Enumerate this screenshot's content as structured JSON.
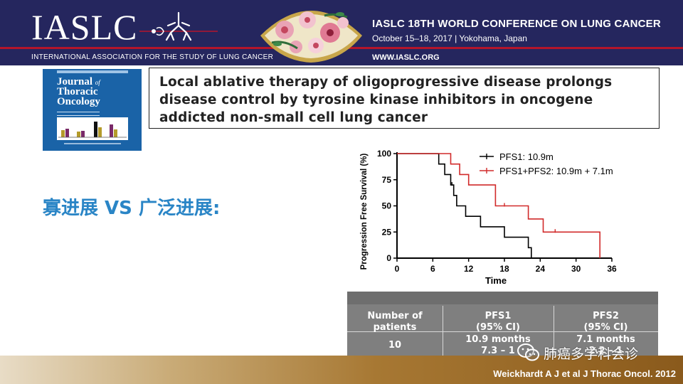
{
  "header": {
    "logo_text": "IASLC",
    "org_fullname": "INTERNATIONAL ASSOCIATION FOR THE STUDY OF LUNG CANCER",
    "conference_title": "IASLC 18TH WORLD CONFERENCE ON LUNG CANCER",
    "conference_date_place": "October 15–18, 2017 | Yokohama, Japan",
    "website": "WWW.IASLC.ORG"
  },
  "journal_cover": {
    "line1": "Journal",
    "line1_suffix": "of",
    "line2": "Thoracic",
    "line3": "Oncology"
  },
  "paper": {
    "title_lines": [
      "Local ablative therapy of oligoprogressive disease prolongs",
      "disease control by tyrosine kinase inhibitors in oncogene",
      "addicted non-small cell lung cancer"
    ]
  },
  "slide_heading": "寡进展 VS 广泛进展:",
  "chart_data": {
    "type": "line",
    "subtype": "kaplan-meier",
    "xlabel": "Time",
    "ylabel": "Progression Free Survival (%)",
    "xlim": [
      0,
      36
    ],
    "ylim": [
      0,
      100
    ],
    "xticks": [
      0,
      6,
      12,
      18,
      24,
      30,
      36
    ],
    "yticks": [
      0,
      25,
      50,
      75,
      100
    ],
    "legend_position": "top-right",
    "series": [
      {
        "name": "PFS1: 10.9m",
        "color": "#000000",
        "steps": [
          [
            0,
            100
          ],
          [
            7,
            100
          ],
          [
            7,
            90
          ],
          [
            8,
            90
          ],
          [
            8,
            80
          ],
          [
            9,
            80
          ],
          [
            9,
            70
          ],
          [
            9.5,
            70
          ],
          [
            9.5,
            60
          ],
          [
            10,
            60
          ],
          [
            10,
            50
          ],
          [
            11.5,
            50
          ],
          [
            11.5,
            40
          ],
          [
            14,
            40
          ],
          [
            14,
            30
          ],
          [
            18,
            30
          ],
          [
            18,
            20
          ],
          [
            22,
            20
          ],
          [
            22,
            10
          ],
          [
            22.5,
            10
          ],
          [
            22.5,
            0
          ]
        ],
        "censored": [
          [
            9.2,
            70
          ]
        ]
      },
      {
        "name": "PFS1+PFS2: 10.9m + 7.1m",
        "color": "#d12a2a",
        "steps": [
          [
            0,
            100
          ],
          [
            9,
            100
          ],
          [
            9,
            90
          ],
          [
            10.5,
            90
          ],
          [
            10.5,
            80
          ],
          [
            12,
            80
          ],
          [
            12,
            70
          ],
          [
            16.5,
            70
          ],
          [
            16.5,
            50
          ],
          [
            22,
            50
          ],
          [
            22,
            37.5
          ],
          [
            24.5,
            37.5
          ],
          [
            24.5,
            25
          ],
          [
            34,
            25
          ],
          [
            34,
            0
          ]
        ],
        "censored": [
          [
            18,
            50
          ],
          [
            26.5,
            25
          ]
        ]
      }
    ]
  },
  "table": {
    "headers": [
      "Number of patients",
      "PFS1 (95% CI)",
      "PFS2 (95% CI)"
    ],
    "rows": [
      [
        "10",
        "10.9 months 7.3 – 1",
        "7.1 months 2.2 – 1"
      ]
    ],
    "header_lines": [
      [
        "Number of",
        "patients"
      ],
      [
        "PFS1",
        "(95% CI)"
      ],
      [
        "PFS2",
        "(95% CI)"
      ]
    ],
    "row_lines": [
      [
        "10"
      ],
      [
        "10.9 months",
        "7.3 – 1"
      ],
      [
        "7.1 months",
        "2.2 – 1"
      ]
    ]
  },
  "watermark": "肺癌多学科会诊",
  "citation": "Weickhardt A J et al J Thorac Oncol. 2012",
  "colors": {
    "header_bg": "#25265e",
    "header_accent": "#b5152b",
    "heading_blue": "#2a85c6",
    "journal_blue": "#1a63a7",
    "table_bg": "#7f7f7f",
    "series_red": "#d12a2a"
  }
}
